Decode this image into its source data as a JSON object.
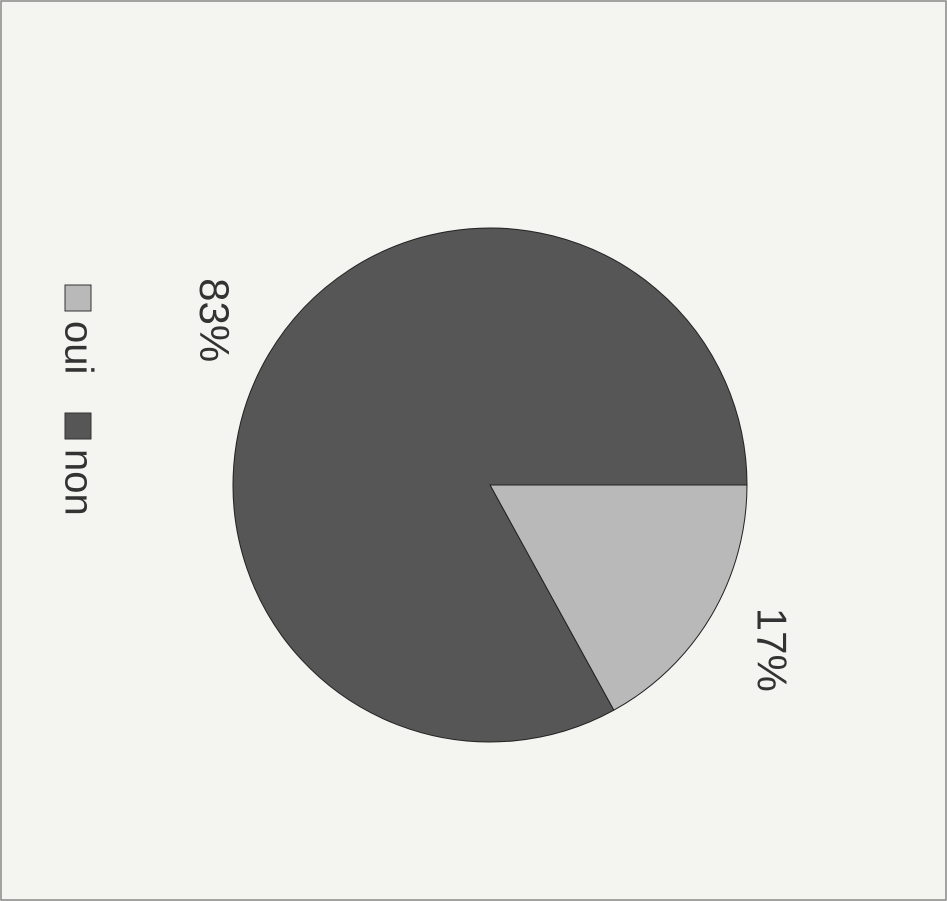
{
  "chart_data": {
    "type": "pie",
    "categories": [
      "oui",
      "non"
    ],
    "values": [
      17,
      83
    ],
    "value_labels": [
      "17%",
      "83%"
    ],
    "colors": [
      "#b9b9b9",
      "#565656"
    ]
  }
}
